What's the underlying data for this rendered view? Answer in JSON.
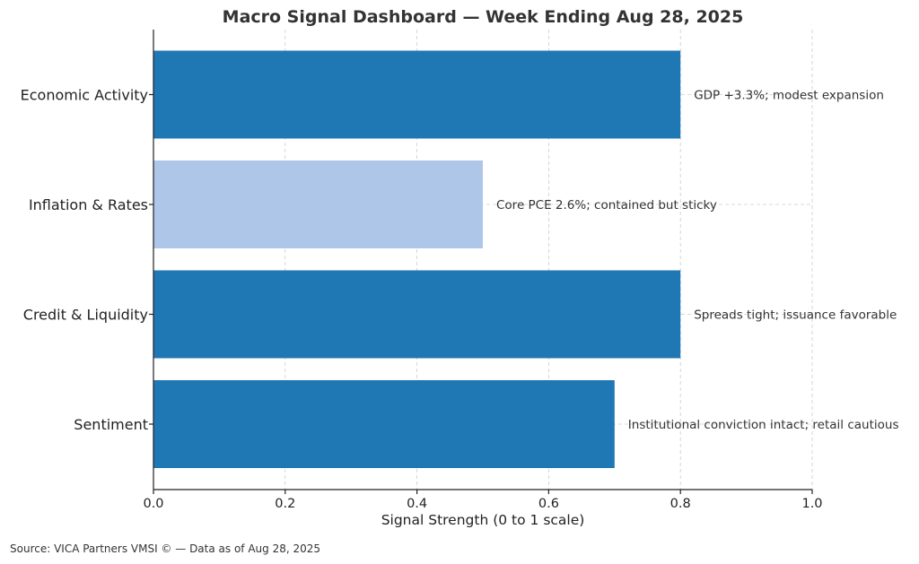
{
  "chart_data": {
    "type": "bar",
    "orientation": "horizontal",
    "title": "Macro Signal Dashboard — Week Ending Aug 28, 2025",
    "xlabel": "Signal Strength (0 to 1 scale)",
    "ylabel": "",
    "xlim": [
      0,
      1.0
    ],
    "xticks": [
      "0.0",
      "0.2",
      "0.4",
      "0.6",
      "0.8",
      "1.0"
    ],
    "grid": true,
    "categories": [
      "Economic Activity",
      "Inflation & Rates",
      "Credit & Liquidity",
      "Sentiment"
    ],
    "values": [
      0.8,
      0.5,
      0.8,
      0.7
    ],
    "colors": [
      "#1f77b4",
      "#aec7e8",
      "#1f77b4",
      "#1f77b4"
    ],
    "annotations": [
      "GDP +3.3%; modest expansion",
      "Core PCE 2.6%; contained but sticky",
      "Spreads tight; issuance favorable",
      "Institutional conviction intact; retail cautious"
    ]
  },
  "footer": {
    "source": "Source: VICA Partners VMSI © — Data as of Aug 28, 2025"
  }
}
